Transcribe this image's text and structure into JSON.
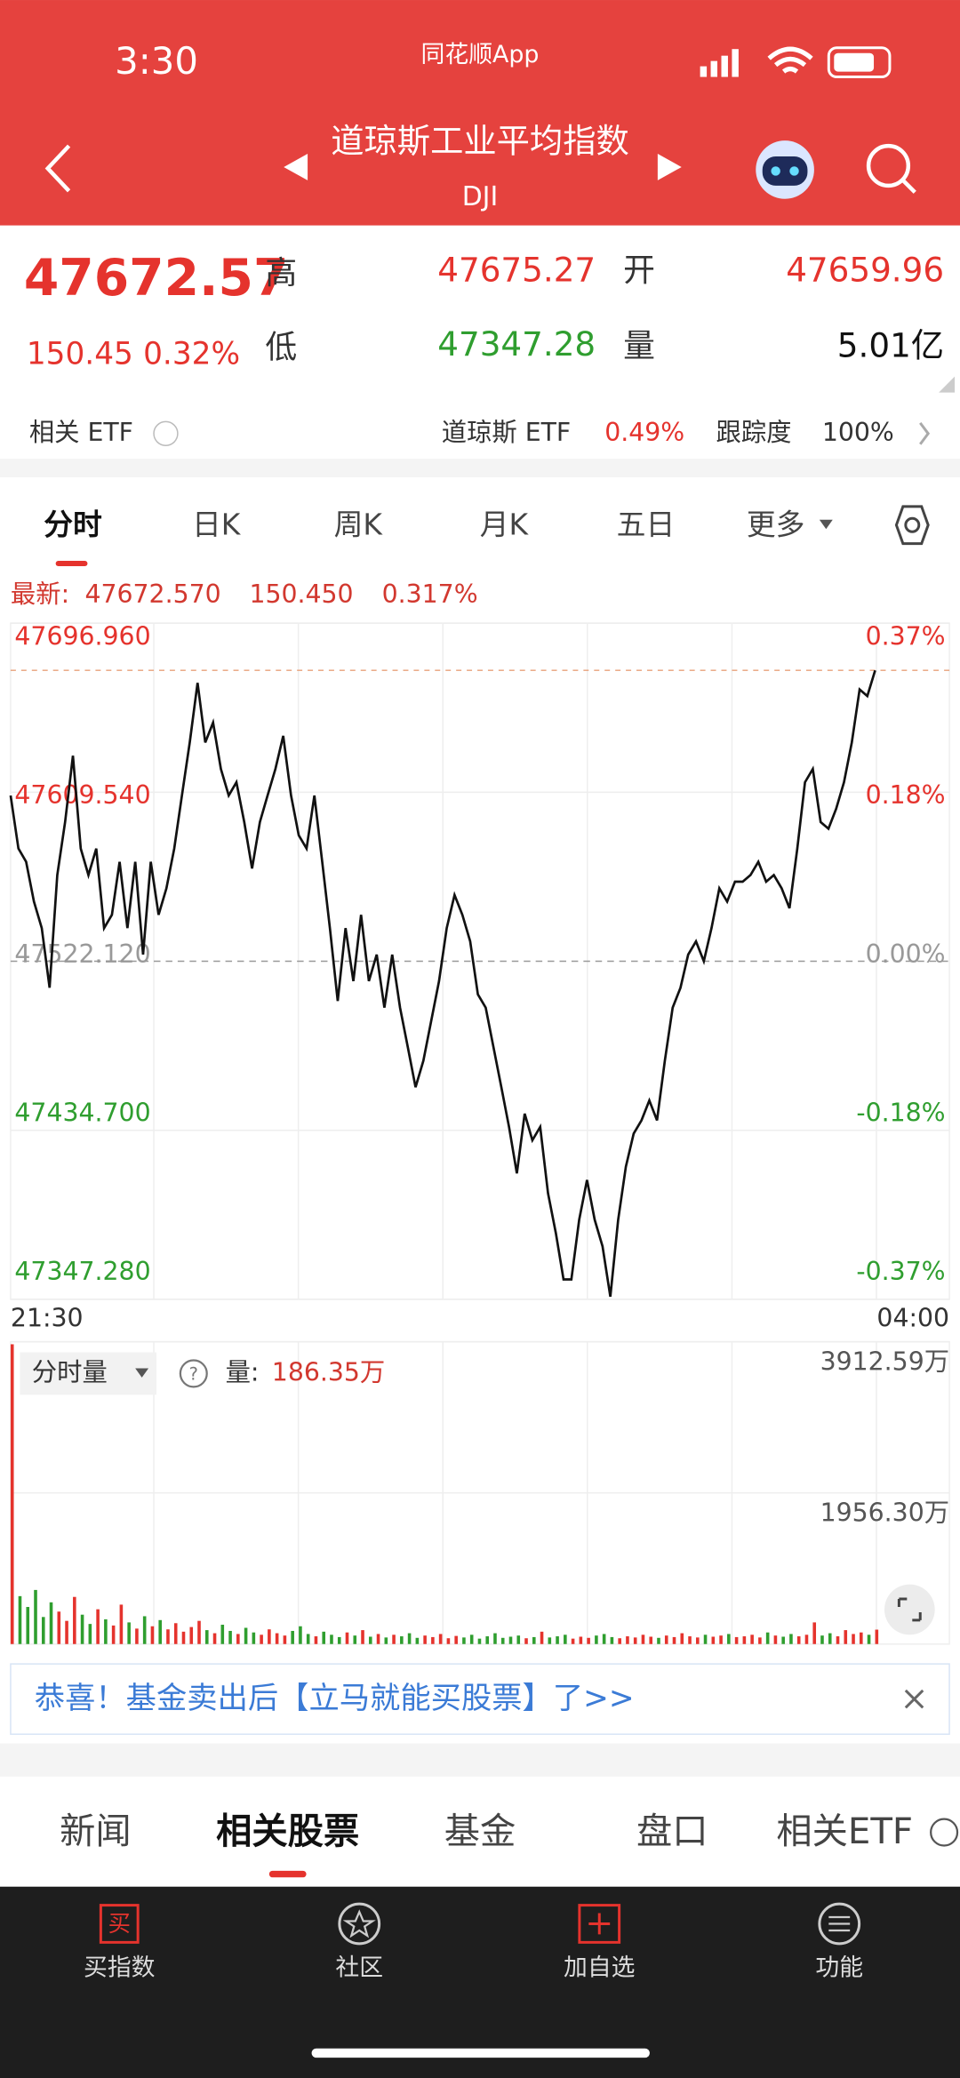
{
  "status": {
    "time": "3:30",
    "app": "同花顺App"
  },
  "header": {
    "title": "道琼斯工业平均指数",
    "code": "DJI"
  },
  "quote": {
    "price": "47672.57",
    "change": "150.45",
    "pct": "0.32%",
    "high_label": "高",
    "high": "47675.27",
    "open_label": "开",
    "open": "47659.96",
    "low_label": "低",
    "low": "47347.28",
    "vol_label": "量",
    "vol": "5.01亿"
  },
  "etf": {
    "label": "相关 ETF",
    "name": "道琼斯 ETF",
    "pct": "0.49%",
    "track_label": "跟踪度",
    "track": "100%"
  },
  "tabs": [
    "分时",
    "日K",
    "周K",
    "月K",
    "五日",
    "更多"
  ],
  "latest": {
    "label": "最新:",
    "price": "47672.570",
    "change": "150.450",
    "pct": "0.317%"
  },
  "intraday": {
    "ylim": [
      47347.28,
      47696.96
    ],
    "yticks": [
      {
        "value": 47347.28,
        "label": "47347.280"
      },
      {
        "value": 47434.7,
        "label": "47434.700"
      },
      {
        "value": 47522.12,
        "label": "47522.120"
      },
      {
        "value": 47609.54,
        "label": "47609.540"
      },
      {
        "value": 47696.96,
        "label": "47696.960"
      }
    ],
    "pct_labels": [
      "-0.37%",
      "-0.18%",
      "0.00%",
      "0.18%",
      "0.37%"
    ],
    "time_start": "21:30",
    "time_end": "04:00",
    "values": [
      47607.83,
      47580.4,
      47573.54,
      47552.97,
      47539.26,
      47508.41,
      47566.69,
      47594.11,
      47628.39,
      47580.4,
      47566.69,
      47580.4,
      47539.26,
      47546.12,
      47573.54,
      47539.26,
      47573.54,
      47525.55,
      47573.54,
      47546.12,
      47559.83,
      47580.4,
      47607.83,
      47635.25,
      47666.11,
      47635.25,
      47645.54,
      47621.54,
      47607.83,
      47614.68,
      47594.11,
      47570.11,
      47594.11,
      47607.83,
      47621.54,
      47638.68,
      47607.83,
      47587.26,
      47580.4,
      47607.83,
      47573.54,
      47539.26,
      47501.55,
      47539.26,
      47511.83,
      47546.12,
      47511.83,
      47525.55,
      47498.12,
      47525.55,
      47498.12,
      47477.55,
      47456.98,
      47470.7,
      47491.26,
      47511.83,
      47539.26,
      47556.4,
      47546.12,
      47532.4,
      47504.98,
      47498.12,
      47477.55,
      47456.98,
      47436.41,
      47412.42,
      47443.27,
      47429.56,
      47436.41,
      47402.13,
      47381.56,
      47357.56,
      47357.56,
      47388.42,
      47408.99,
      47388.42,
      47374.7,
      47348.65,
      47388.42,
      47415.84,
      47432.98,
      47439.84,
      47450.13,
      47439.84,
      47470.7,
      47498.12,
      47508.41,
      47525.55,
      47532.4,
      47522.12,
      47539.26,
      47559.83,
      47552.97,
      47563.26,
      47563.26,
      47566.69,
      47573.54,
      47563.26,
      47566.69,
      47559.83,
      47549.55,
      47580.4,
      47614.68,
      47621.54,
      47594.11,
      47590.68,
      47600.97,
      47614.68,
      47635.25,
      47662.68,
      47659.25,
      47672.57
    ]
  },
  "volume": {
    "selector": "分时量",
    "label": "量:",
    "current": "186.35万",
    "ylim": [
      0,
      3912.59
    ],
    "yticks": [
      {
        "value": 1956.3,
        "label": "1956.30万"
      },
      {
        "value": 3912.59,
        "label": "3912.59万"
      }
    ],
    "values": [
      3880,
      620,
      480,
      700,
      350,
      540,
      420,
      300,
      610,
      380,
      260,
      450,
      320,
      240,
      510,
      280,
      200,
      360,
      230,
      310,
      190,
      270,
      160,
      220,
      300,
      180,
      140,
      250,
      170,
      130,
      210,
      150,
      120,
      190,
      140,
      110,
      170,
      230,
      130,
      100,
      160,
      120,
      90,
      150,
      110,
      180,
      95,
      130,
      85,
      120,
      100,
      140,
      80,
      110,
      90,
      130,
      75,
      105,
      85,
      120,
      70,
      100,
      140,
      80,
      95,
      110,
      75,
      90,
      160,
      85,
      100,
      120,
      70,
      95,
      80,
      110,
      130,
      90,
      75,
      100,
      85,
      120,
      95,
      80,
      110,
      90,
      140,
      100,
      85,
      120,
      95,
      110,
      130,
      90,
      100,
      120,
      85,
      150,
      110,
      95,
      130,
      100,
      120,
      280,
      110,
      140,
      100,
      180,
      130,
      150,
      120,
      186.35
    ]
  },
  "banner": {
    "text": "恭喜！基金卖出后【立马就能买股票】了>>"
  },
  "bottom_tabs": [
    "新闻",
    "相关股票",
    "基金",
    "盘口",
    "相关ETF"
  ],
  "nav": {
    "buy_icon": "买",
    "items": [
      "买指数",
      "社区",
      "加自选",
      "功能"
    ]
  }
}
